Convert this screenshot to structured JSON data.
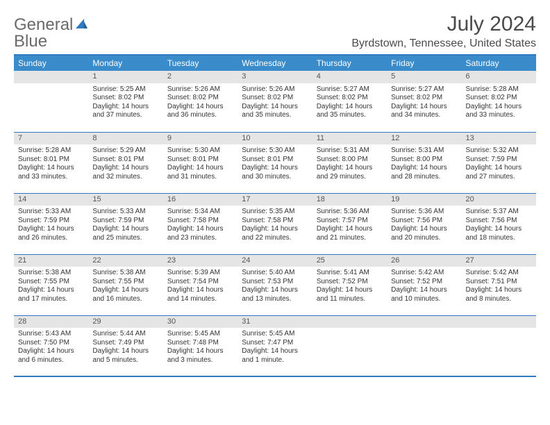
{
  "logo": {
    "word1": "General",
    "word2": "Blue"
  },
  "title": "July 2024",
  "location": "Byrdstown, Tennessee, United States",
  "colors": {
    "header_bg": "#3a8bc9",
    "header_text": "#ffffff",
    "rule": "#2f7ac0",
    "daynum_bg": "#e5e5e5",
    "text": "#333333",
    "logo_gray": "#6a6a6a",
    "logo_blue": "#2f7ac0"
  },
  "day_headers": [
    "Sunday",
    "Monday",
    "Tuesday",
    "Wednesday",
    "Thursday",
    "Friday",
    "Saturday"
  ],
  "weeks": [
    [
      null,
      {
        "n": "1",
        "sr": "5:25 AM",
        "ss": "8:02 PM",
        "dl": "14 hours and 37 minutes."
      },
      {
        "n": "2",
        "sr": "5:26 AM",
        "ss": "8:02 PM",
        "dl": "14 hours and 36 minutes."
      },
      {
        "n": "3",
        "sr": "5:26 AM",
        "ss": "8:02 PM",
        "dl": "14 hours and 35 minutes."
      },
      {
        "n": "4",
        "sr": "5:27 AM",
        "ss": "8:02 PM",
        "dl": "14 hours and 35 minutes."
      },
      {
        "n": "5",
        "sr": "5:27 AM",
        "ss": "8:02 PM",
        "dl": "14 hours and 34 minutes."
      },
      {
        "n": "6",
        "sr": "5:28 AM",
        "ss": "8:02 PM",
        "dl": "14 hours and 33 minutes."
      }
    ],
    [
      {
        "n": "7",
        "sr": "5:28 AM",
        "ss": "8:01 PM",
        "dl": "14 hours and 33 minutes."
      },
      {
        "n": "8",
        "sr": "5:29 AM",
        "ss": "8:01 PM",
        "dl": "14 hours and 32 minutes."
      },
      {
        "n": "9",
        "sr": "5:30 AM",
        "ss": "8:01 PM",
        "dl": "14 hours and 31 minutes."
      },
      {
        "n": "10",
        "sr": "5:30 AM",
        "ss": "8:01 PM",
        "dl": "14 hours and 30 minutes."
      },
      {
        "n": "11",
        "sr": "5:31 AM",
        "ss": "8:00 PM",
        "dl": "14 hours and 29 minutes."
      },
      {
        "n": "12",
        "sr": "5:31 AM",
        "ss": "8:00 PM",
        "dl": "14 hours and 28 minutes."
      },
      {
        "n": "13",
        "sr": "5:32 AM",
        "ss": "7:59 PM",
        "dl": "14 hours and 27 minutes."
      }
    ],
    [
      {
        "n": "14",
        "sr": "5:33 AM",
        "ss": "7:59 PM",
        "dl": "14 hours and 26 minutes."
      },
      {
        "n": "15",
        "sr": "5:33 AM",
        "ss": "7:59 PM",
        "dl": "14 hours and 25 minutes."
      },
      {
        "n": "16",
        "sr": "5:34 AM",
        "ss": "7:58 PM",
        "dl": "14 hours and 23 minutes."
      },
      {
        "n": "17",
        "sr": "5:35 AM",
        "ss": "7:58 PM",
        "dl": "14 hours and 22 minutes."
      },
      {
        "n": "18",
        "sr": "5:36 AM",
        "ss": "7:57 PM",
        "dl": "14 hours and 21 minutes."
      },
      {
        "n": "19",
        "sr": "5:36 AM",
        "ss": "7:56 PM",
        "dl": "14 hours and 20 minutes."
      },
      {
        "n": "20",
        "sr": "5:37 AM",
        "ss": "7:56 PM",
        "dl": "14 hours and 18 minutes."
      }
    ],
    [
      {
        "n": "21",
        "sr": "5:38 AM",
        "ss": "7:55 PM",
        "dl": "14 hours and 17 minutes."
      },
      {
        "n": "22",
        "sr": "5:38 AM",
        "ss": "7:55 PM",
        "dl": "14 hours and 16 minutes."
      },
      {
        "n": "23",
        "sr": "5:39 AM",
        "ss": "7:54 PM",
        "dl": "14 hours and 14 minutes."
      },
      {
        "n": "24",
        "sr": "5:40 AM",
        "ss": "7:53 PM",
        "dl": "14 hours and 13 minutes."
      },
      {
        "n": "25",
        "sr": "5:41 AM",
        "ss": "7:52 PM",
        "dl": "14 hours and 11 minutes."
      },
      {
        "n": "26",
        "sr": "5:42 AM",
        "ss": "7:52 PM",
        "dl": "14 hours and 10 minutes."
      },
      {
        "n": "27",
        "sr": "5:42 AM",
        "ss": "7:51 PM",
        "dl": "14 hours and 8 minutes."
      }
    ],
    [
      {
        "n": "28",
        "sr": "5:43 AM",
        "ss": "7:50 PM",
        "dl": "14 hours and 6 minutes."
      },
      {
        "n": "29",
        "sr": "5:44 AM",
        "ss": "7:49 PM",
        "dl": "14 hours and 5 minutes."
      },
      {
        "n": "30",
        "sr": "5:45 AM",
        "ss": "7:48 PM",
        "dl": "14 hours and 3 minutes."
      },
      {
        "n": "31",
        "sr": "5:45 AM",
        "ss": "7:47 PM",
        "dl": "14 hours and 1 minute."
      },
      null,
      null,
      null
    ]
  ],
  "labels": {
    "sunrise": "Sunrise:",
    "sunset": "Sunset:",
    "daylight": "Daylight:"
  }
}
